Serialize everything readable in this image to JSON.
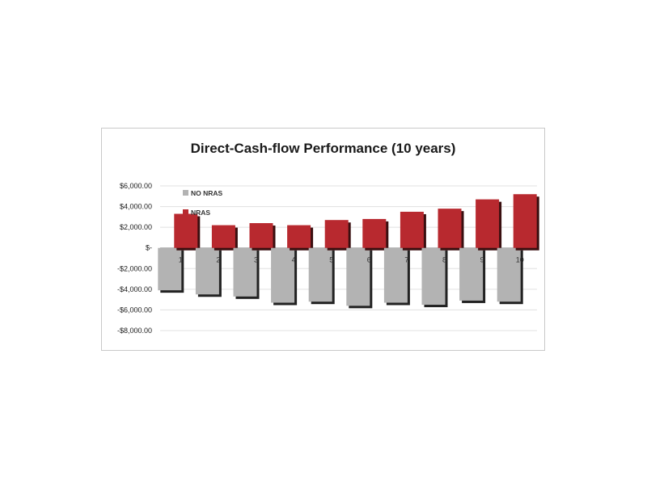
{
  "chart_data": {
    "type": "bar",
    "title": "Direct-Cash-flow Performance (10 years)",
    "xlabel": "",
    "ylabel": "",
    "categories": [
      "1",
      "2",
      "3",
      "4",
      "5",
      "6",
      "7",
      "8",
      "9",
      "10"
    ],
    "ylim": [
      -8000,
      6000
    ],
    "yticks": [
      6000,
      4000,
      2000,
      0,
      -2000,
      -4000,
      -6000,
      -8000
    ],
    "ytick_labels": [
      "$6,000.00",
      "$4,000.00",
      "$2,000.00",
      "$-",
      "-$2,000.00",
      "-$4,000.00",
      "-$6,000.00",
      "-$8,000.00"
    ],
    "grid": true,
    "legend_position": "top-left",
    "series": [
      {
        "name": "NO NRAS",
        "color": "#b3b3b3",
        "values": [
          -4100,
          -4500,
          -4700,
          -5300,
          -5200,
          -5600,
          -5300,
          -5500,
          -5100,
          -5200
        ]
      },
      {
        "name": "NRAS",
        "color": "#b8292f",
        "values": [
          3300,
          2200,
          2400,
          2200,
          2700,
          2800,
          3500,
          3800,
          4700,
          5200
        ]
      }
    ]
  }
}
